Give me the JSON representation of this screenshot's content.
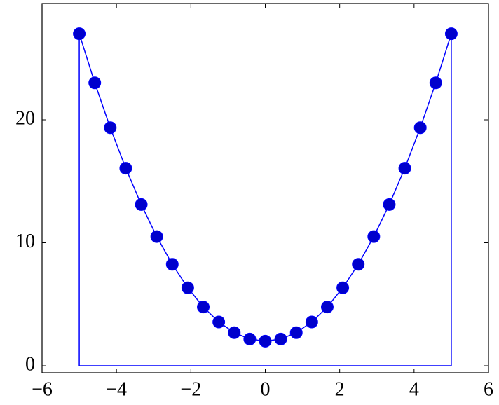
{
  "chart_data": {
    "type": "line",
    "x": [
      -5,
      -4.5833,
      -4.1667,
      -3.75,
      -3.3333,
      -2.9167,
      -2.5,
      -2.0833,
      -1.6667,
      -1.25,
      -0.8333,
      -0.4167,
      0,
      0.4167,
      0.8333,
      1.25,
      1.6667,
      2.0833,
      2.5,
      2.9167,
      3.3333,
      3.75,
      4.1667,
      4.5833,
      5
    ],
    "series": [
      {
        "color": "#0000ff",
        "marker_color": "#0000cc",
        "values": [
          27,
          23.007,
          19.361,
          16.0625,
          13.111,
          10.507,
          8.25,
          6.34,
          4.778,
          3.5625,
          2.694,
          2.174,
          2,
          2.174,
          2.694,
          3.5625,
          4.778,
          6.34,
          8.25,
          10.507,
          13.111,
          16.0625,
          19.361,
          23.007,
          27
        ]
      }
    ],
    "xlim": [
      -6,
      6
    ],
    "ylim": [
      -0.57,
      29.46
    ],
    "xticks": [
      {
        "value": -6,
        "label": "−6"
      },
      {
        "value": -4,
        "label": "−4"
      },
      {
        "value": -2,
        "label": "−2"
      },
      0,
      2,
      4,
      6
    ],
    "yticks": [
      0,
      10,
      20
    ],
    "closed_to_zero": true
  }
}
